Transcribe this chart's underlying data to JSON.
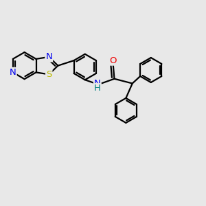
{
  "bg_color": "#e8e8e8",
  "bond_color": "#000000",
  "bond_width": 1.6,
  "atom_colors": {
    "N_blue": "#0000ee",
    "N_teal": "#008080",
    "S": "#bbbb00",
    "O": "#ee0000",
    "C": "#000000"
  },
  "font_size_atom": 9.5,
  "figsize": [
    3.0,
    3.0
  ],
  "dpi": 100,
  "xlim": [
    -1.5,
    6.5
  ],
  "ylim": [
    -3.5,
    3.5
  ]
}
